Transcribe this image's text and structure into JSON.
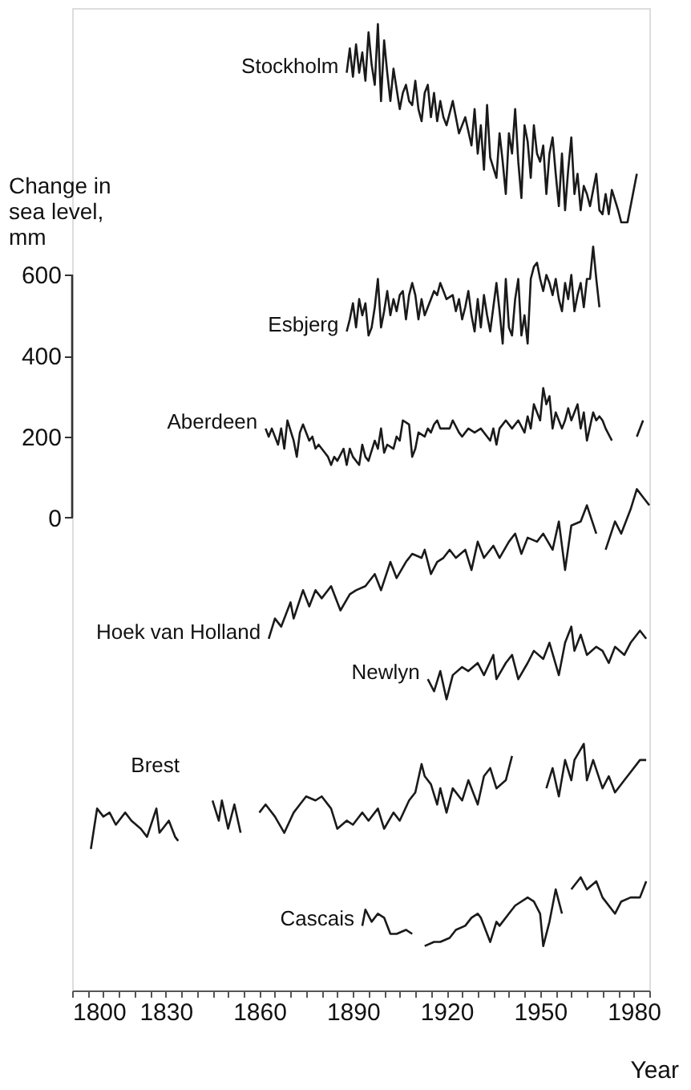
{
  "chart_data": {
    "type": "line",
    "xlabel": "Year",
    "ylabel": "Change in sea level, mm",
    "xlim": [
      1800,
      1985
    ],
    "ylim": [
      -1170,
      1260
    ],
    "xticks": [
      1800,
      {
        "value": 1805,
        "label": null
      },
      {
        "value": 1810,
        "label": null
      },
      {
        "value": 1815,
        "label": null
      },
      {
        "value": 1820,
        "label": null
      },
      {
        "value": 1825,
        "label": null
      },
      1830,
      {
        "value": 1835,
        "label": null
      },
      {
        "value": 1840,
        "label": null
      },
      {
        "value": 1845,
        "label": null
      },
      {
        "value": 1850,
        "label": null
      },
      {
        "value": 1855,
        "label": null
      },
      1860,
      {
        "value": 1865,
        "label": null
      },
      {
        "value": 1870,
        "label": null
      },
      {
        "value": 1875,
        "label": null
      },
      {
        "value": 1880,
        "label": null
      },
      {
        "value": 1885,
        "label": null
      },
      1890,
      {
        "value": 1895,
        "label": null
      },
      {
        "value": 1900,
        "label": null
      },
      {
        "value": 1905,
        "label": null
      },
      {
        "value": 1910,
        "label": null
      },
      {
        "value": 1915,
        "label": null
      },
      1920,
      {
        "value": 1925,
        "label": null
      },
      {
        "value": 1930,
        "label": null
      },
      {
        "value": 1935,
        "label": null
      },
      {
        "value": 1940,
        "label": null
      },
      {
        "value": 1945,
        "label": null
      },
      1950,
      {
        "value": 1955,
        "label": null
      },
      {
        "value": 1960,
        "label": null
      },
      {
        "value": 1965,
        "label": null
      },
      {
        "value": 1970,
        "label": null
      },
      {
        "value": 1975,
        "label": null
      },
      1980,
      {
        "value": 1985,
        "label": null
      }
    ],
    "yticks": [
      0,
      200,
      400,
      600
    ],
    "grid": false,
    "legend": false,
    "marker": "none",
    "line_style": "solid",
    "series": [
      {
        "name": "Stockholm",
        "color": "#1a1a1a",
        "x": [
          1888,
          1889,
          1890,
          1891,
          1892,
          1893,
          1894,
          1895,
          1896,
          1897,
          1898,
          1899,
          1900,
          1901,
          1902,
          1903,
          1904,
          1905,
          1906,
          1907,
          1908,
          1909,
          1910,
          1911,
          1912,
          1913,
          1914,
          1915,
          1916,
          1917,
          1918,
          1919,
          1920,
          1922,
          1924,
          1926,
          1928,
          1929,
          1930,
          1931,
          1932,
          1933,
          1934,
          1936,
          1937,
          1938,
          1939,
          1940,
          1941,
          1942,
          1943,
          1944,
          1945,
          1946,
          1947,
          1948,
          1949,
          1950,
          1951,
          1952,
          1953,
          1954,
          1955,
          1956,
          1957,
          1958,
          1959,
          1960,
          1961,
          1962,
          1963,
          1964,
          1965,
          1966,
          1968,
          1969,
          1970,
          1971,
          1972,
          1973,
          1975,
          1976,
          1978,
          1979,
          1981
        ],
        "values": [
          1100,
          1160,
          1090,
          1170,
          1100,
          1150,
          1080,
          1200,
          1120,
          1070,
          1220,
          1030,
          1180,
          1100,
          1030,
          1110,
          1060,
          1010,
          1050,
          1070,
          1030,
          1020,
          1080,
          1010,
          980,
          1050,
          1070,
          990,
          1050,
          980,
          1030,
          990,
          970,
          1030,
          950,
          990,
          920,
          1010,
          900,
          970,
          860,
          1020,
          890,
          840,
          950,
          880,
          800,
          950,
          900,
          1010,
          880,
          790,
          970,
          930,
          840,
          970,
          900,
          880,
          920,
          800,
          900,
          940,
          850,
          770,
          900,
          760,
          860,
          940,
          800,
          850,
          760,
          820,
          800,
          770,
          850,
          760,
          750,
          800,
          750,
          810,
          760,
          730,
          730,
          770,
          850
        ]
      },
      {
        "name": "Esbjerg",
        "color": "#1a1a1a",
        "x": [
          1888,
          1889,
          1890,
          1891,
          1892,
          1893,
          1894,
          1895,
          1896,
          1897,
          1898,
          1899,
          1900,
          1901,
          1902,
          1903,
          1904,
          1905,
          1906,
          1907,
          1908,
          1909,
          1910,
          1911,
          1912,
          1913,
          1914,
          1915,
          1916,
          1917,
          1918,
          1919,
          1920,
          1922,
          1923,
          1924,
          1925,
          1926,
          1927,
          1928,
          1929,
          1930,
          1931,
          1932,
          1933,
          1934,
          1935,
          1936,
          1937,
          1938,
          1939,
          1940,
          1941,
          1942,
          1943,
          1944,
          1945,
          1946,
          1947,
          1948,
          1949,
          1950,
          1951,
          1952,
          1953,
          1954,
          1955,
          1956,
          1957,
          1958,
          1959,
          1960,
          1961,
          1962,
          1963,
          1964,
          1965,
          1966,
          1967,
          1968,
          1969
        ],
        "values": [
          460,
          490,
          530,
          470,
          540,
          500,
          530,
          450,
          470,
          520,
          590,
          470,
          510,
          560,
          500,
          540,
          510,
          550,
          560,
          490,
          550,
          580,
          550,
          490,
          540,
          500,
          520,
          540,
          560,
          550,
          580,
          560,
          540,
          550,
          510,
          540,
          490,
          520,
          560,
          500,
          460,
          540,
          470,
          550,
          500,
          460,
          520,
          580,
          510,
          430,
          590,
          470,
          450,
          540,
          590,
          450,
          500,
          430,
          590,
          620,
          630,
          590,
          560,
          600,
          580,
          550,
          590,
          540,
          510,
          580,
          540,
          600,
          510,
          550,
          580,
          520,
          590,
          590,
          670,
          590,
          520
        ]
      },
      {
        "name": "Aberdeen",
        "color": "#1a1a1a",
        "x": [
          1862,
          1863,
          1864,
          1866,
          1867,
          1868,
          1869,
          1871,
          1872,
          1873,
          1874,
          1876,
          1877,
          1878,
          1879,
          1881,
          1882,
          1883,
          1884,
          1885,
          1887,
          1888,
          1889,
          1890,
          1892,
          1893,
          1894,
          1895,
          1897,
          1898,
          1899,
          1900,
          1901,
          1903,
          1904,
          1905,
          1906,
          1908,
          1909,
          1910,
          1911,
          1913,
          1914,
          1915,
          1916,
          1917,
          1918,
          1921,
          1922,
          1924,
          1925,
          1926,
          1927,
          1929,
          1931,
          1934,
          1935,
          1936,
          1937,
          1939,
          1941,
          1943,
          1945,
          1946,
          1947,
          1948,
          1950,
          1951,
          1952,
          1953,
          1954,
          1955,
          1957,
          1958,
          1959,
          1960,
          1962,
          1963,
          1964,
          1965,
          1967,
          1968,
          1969,
          1970,
          1971,
          1973,
          1977,
          1981,
          1983
        ],
        "values": [
          220,
          200,
          220,
          180,
          220,
          170,
          240,
          190,
          150,
          210,
          230,
          190,
          200,
          170,
          180,
          160,
          150,
          130,
          150,
          140,
          170,
          130,
          170,
          150,
          130,
          180,
          150,
          140,
          190,
          170,
          220,
          160,
          180,
          170,
          200,
          190,
          240,
          230,
          150,
          170,
          210,
          200,
          220,
          210,
          230,
          240,
          220,
          220,
          240,
          210,
          200,
          210,
          220,
          210,
          220,
          190,
          220,
          180,
          220,
          240,
          220,
          240,
          210,
          250,
          220,
          280,
          240,
          320,
          280,
          300,
          220,
          260,
          220,
          240,
          270,
          240,
          280,
          220,
          260,
          190,
          260,
          240,
          250,
          240,
          220,
          190,
          null,
          200,
          240
        ]
      },
      {
        "name": "Hoek van Holland",
        "color": "#1a1a1a",
        "x": [
          1863,
          1865,
          1867,
          1870,
          1871,
          1874,
          1876,
          1878,
          1880,
          1883,
          1886,
          1889,
          1891,
          1894,
          1897,
          1899,
          1902,
          1904,
          1907,
          1909,
          1912,
          1913,
          1915,
          1917,
          1919,
          1921,
          1923,
          1926,
          1928,
          1930,
          1932,
          1935,
          1937,
          1940,
          1942,
          1944,
          1946,
          1949,
          1951,
          1954,
          1956,
          1958,
          1960,
          1963,
          1965,
          1968,
          1970,
          1971,
          1974,
          1976,
          1979,
          1981,
          1983,
          1985
        ],
        "values": [
          -300,
          -250,
          -270,
          -210,
          -250,
          -180,
          -220,
          -180,
          -200,
          -170,
          -230,
          -190,
          -180,
          -170,
          -140,
          -180,
          -110,
          -150,
          -110,
          -90,
          -100,
          -80,
          -140,
          -110,
          -100,
          -80,
          -100,
          -80,
          -130,
          -60,
          -100,
          -70,
          -100,
          -60,
          -40,
          -90,
          -50,
          -60,
          -40,
          -80,
          -10,
          -130,
          -20,
          -10,
          30,
          -40,
          null,
          -80,
          -10,
          -40,
          20,
          70,
          50,
          30
        ]
      },
      {
        "name": "Newlyn",
        "color": "#1a1a1a",
        "x": [
          1914,
          1916,
          1918,
          1920,
          1922,
          1925,
          1927,
          1930,
          1932,
          1935,
          1936,
          1939,
          1941,
          1943,
          1946,
          1948,
          1951,
          1953,
          1956,
          1958,
          1960,
          1961,
          1963,
          1965,
          1968,
          1970,
          1972,
          1974,
          1977,
          1979,
          1982,
          1984
        ],
        "values": [
          -400,
          -430,
          -380,
          -450,
          -390,
          -370,
          -380,
          -360,
          -390,
          -340,
          -400,
          -360,
          -340,
          -400,
          -360,
          -330,
          -350,
          -310,
          -390,
          -310,
          -270,
          -330,
          -290,
          -340,
          -320,
          -330,
          -360,
          -320,
          -340,
          -310,
          -280,
          -300
        ]
      },
      {
        "name": "Brest",
        "color": "#1a1a1a",
        "x": [
          1806,
          1808,
          1810,
          1812,
          1814,
          1817,
          1819,
          1822,
          1824,
          1827,
          1828,
          1831,
          1833,
          1834,
          1840,
          1845,
          1847,
          1848,
          1850,
          1852,
          1854,
          1857,
          1860,
          1862,
          1865,
          1868,
          1871,
          1873,
          1875,
          1878,
          1880,
          1883,
          1885,
          1888,
          1890,
          1893,
          1895,
          1898,
          1900,
          1903,
          1905,
          1908,
          1910,
          1912,
          1913,
          1915,
          1917,
          1918,
          1920,
          1922,
          1925,
          1927,
          1930,
          1932,
          1934,
          1936,
          1939,
          1941,
          1946,
          1952,
          1954,
          1956,
          1958,
          1960,
          1961,
          1964,
          1965,
          1967,
          1970,
          1972,
          1974,
          1977,
          1979,
          1982,
          1984
        ],
        "values": [
          -820,
          -720,
          -740,
          -730,
          -760,
          -730,
          -750,
          -770,
          -790,
          -720,
          -780,
          -750,
          -790,
          -800,
          null,
          -700,
          -750,
          -700,
          -770,
          -710,
          -780,
          null,
          -730,
          -710,
          -740,
          -780,
          -730,
          -710,
          -690,
          -700,
          -690,
          -720,
          -770,
          -750,
          -760,
          -730,
          -750,
          -720,
          -770,
          -730,
          -750,
          -700,
          -680,
          -610,
          -640,
          -660,
          -710,
          -670,
          -730,
          -670,
          -700,
          -650,
          -710,
          -640,
          -620,
          -670,
          -650,
          -590,
          null,
          -670,
          -620,
          -690,
          -600,
          -650,
          -600,
          -560,
          -650,
          -600,
          -670,
          -640,
          -680,
          -650,
          -630,
          -600,
          -600
        ]
      },
      {
        "name": "Cascais",
        "color": "#1a1a1a",
        "x": [
          1893,
          1894,
          1896,
          1898,
          1900,
          1902,
          1904,
          1907,
          1909,
          1911,
          1913,
          1916,
          1918,
          1921,
          1923,
          1926,
          1928,
          1930,
          1931,
          1934,
          1936,
          1937,
          1940,
          1942,
          1946,
          1948,
          1950,
          1951,
          1953,
          1955,
          1957,
          1959,
          1960,
          1963,
          1965,
          1968,
          1970,
          1974,
          1976,
          1979,
          1982,
          1984
        ],
        "values": [
          -1010,
          -970,
          -1000,
          -980,
          -990,
          -1030,
          -1030,
          -1020,
          -1030,
          null,
          -1060,
          -1050,
          -1050,
          -1040,
          -1020,
          -1010,
          -990,
          -980,
          -990,
          -1050,
          -1000,
          -1010,
          -980,
          -960,
          -940,
          -950,
          -980,
          -1060,
          -1000,
          -920,
          -980,
          null,
          -920,
          -890,
          -920,
          -900,
          -940,
          -980,
          -950,
          -940,
          -940,
          -900
        ]
      }
    ]
  }
}
